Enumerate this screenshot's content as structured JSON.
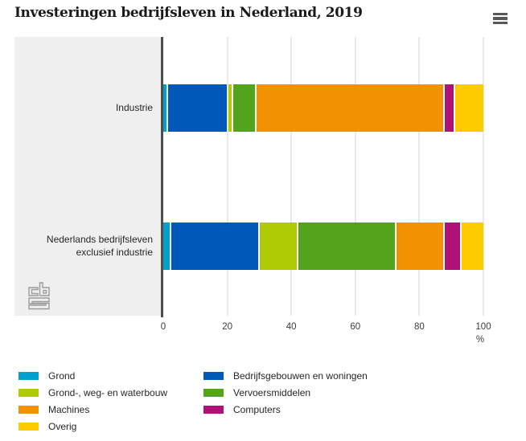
{
  "title": "Investeringen bedrijfsleven in Nederland, 2019",
  "menu": {
    "icon": "hamburger-icon"
  },
  "branding": {
    "logo": "cbs-logo"
  },
  "chart_data": {
    "type": "bar",
    "orientation": "horizontal",
    "stacked": true,
    "title": "Investeringen bedrijfsleven in Nederland, 2019",
    "categories": [
      "Industrie",
      "Nederlands bedrijfsleven exclusief industrie"
    ],
    "series": [
      {
        "name": "Grond",
        "color": "#00a1cd",
        "values": [
          1,
          2
        ]
      },
      {
        "name": "Bedrijfsgebouwen en woningen",
        "color": "#0058b8",
        "values": [
          19,
          28
        ]
      },
      {
        "name": "Grond-, weg- en waterbouw",
        "color": "#afcb05",
        "values": [
          1,
          12
        ]
      },
      {
        "name": "Vervoersmiddelen",
        "color": "#53a31d",
        "values": [
          7,
          31
        ]
      },
      {
        "name": "Machines",
        "color": "#f39200",
        "values": [
          60,
          15
        ]
      },
      {
        "name": "Computers",
        "color": "#af1177",
        "values": [
          3,
          5
        ]
      },
      {
        "name": "Overig",
        "color": "#ffcc00",
        "values": [
          9,
          7
        ]
      }
    ],
    "x_ticks": [
      0,
      20,
      40,
      60,
      80,
      100
    ],
    "xlim": [
      0,
      100
    ],
    "xlabel": "%",
    "grid": true,
    "legend_position": "bottom",
    "legend_columns": 2
  }
}
